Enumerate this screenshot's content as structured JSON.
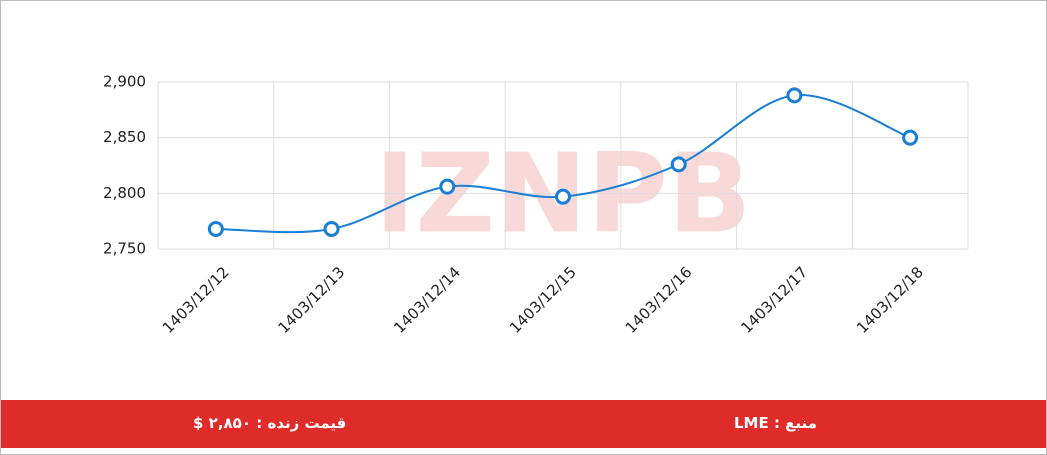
{
  "chart_data": {
    "type": "line",
    "categories": [
      "1403/12/12",
      "1403/12/13",
      "1403/12/14",
      "1403/12/15",
      "1403/12/16",
      "1403/12/17",
      "1403/12/18"
    ],
    "values": [
      2768,
      2768,
      2806,
      2797,
      2826,
      2888,
      2850
    ],
    "color": "#1a7fd4",
    "ylim": [
      2750,
      2900
    ],
    "yticks": [
      {
        "value": 2750,
        "label": "2,750"
      },
      {
        "value": 2800,
        "label": "2,800"
      },
      {
        "value": 2850,
        "label": "2,850"
      },
      {
        "value": 2900,
        "label": "2,900"
      }
    ],
    "grid": true,
    "watermark": "IZNPB"
  },
  "footer": {
    "live_price": "قیمت زنده : ۲,۸۵۰ $",
    "source": "منبع : LME"
  }
}
